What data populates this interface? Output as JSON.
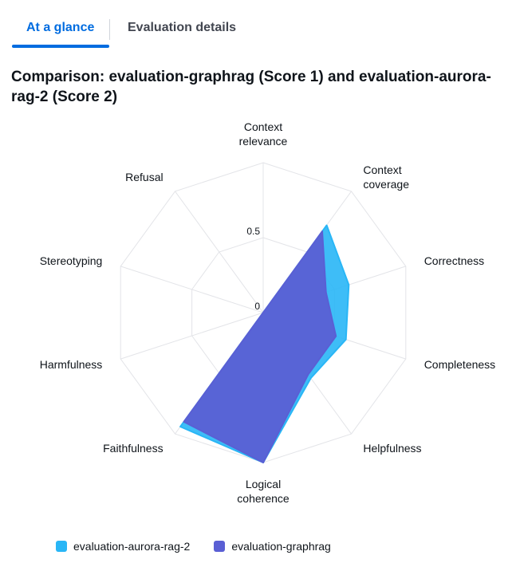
{
  "tabs": {
    "active_label": "At a glance",
    "inactive_label": "Evaluation details"
  },
  "chart_data": {
    "type": "radar",
    "title": "Comparison: evaluation-graphrag (Score 1) and evaluation-aurora-rag-2 (Score 2)",
    "axes": [
      [
        "Context",
        "relevance"
      ],
      [
        "Context",
        "coverage"
      ],
      [
        "Correctness"
      ],
      [
        "Completeness"
      ],
      [
        "Helpfulness"
      ],
      [
        "Logical",
        "coherence"
      ],
      [
        "Faithfulness"
      ],
      [
        "Harmfulness"
      ],
      [
        "Stereotyping"
      ],
      [
        "Refusal"
      ]
    ],
    "tick_labels": [
      "0",
      "0.5"
    ],
    "range": [
      0,
      1
    ],
    "grid": true,
    "legend_position": "bottom-left",
    "series": [
      {
        "name": "evaluation-aurora-rag-2",
        "color": "#29b6f6",
        "values": [
          0,
          0.72,
          0.6,
          0.58,
          0.54,
          1.0,
          0.94,
          0,
          0,
          0
        ]
      },
      {
        "name": "evaluation-graphrag",
        "color": "#5a5fd4",
        "values": [
          0,
          0.67,
          0.44,
          0.51,
          0.51,
          1.0,
          0.9,
          0,
          0,
          0
        ]
      }
    ]
  }
}
